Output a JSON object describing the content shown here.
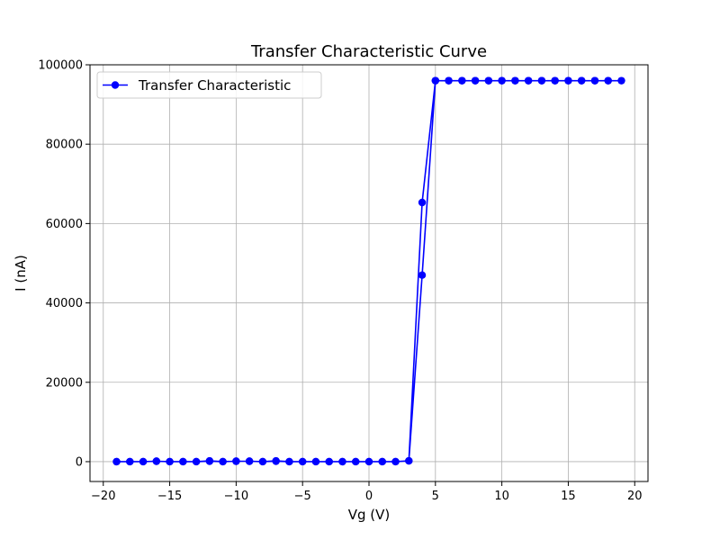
{
  "chart_data": {
    "type": "line",
    "title": "Transfer Characteristic Curve",
    "xlabel": "Vg (V)",
    "ylabel": "I (nA)",
    "xlim": [
      -21,
      21
    ],
    "ylim": [
      -5000,
      100000
    ],
    "xticks": [
      -20,
      -15,
      -10,
      -5,
      0,
      5,
      10,
      15,
      20
    ],
    "xtick_labels": [
      "−20",
      "−15",
      "−10",
      "−5",
      "0",
      "5",
      "10",
      "15",
      "20"
    ],
    "yticks": [
      0,
      20000,
      40000,
      60000,
      80000,
      100000
    ],
    "ytick_labels": [
      "0",
      "20000",
      "40000",
      "60000",
      "80000",
      "100000"
    ],
    "grid": true,
    "legend_position": "top-left",
    "series": [
      {
        "name": "Transfer Characteristic",
        "color": "#0000ff",
        "marker": "circle",
        "x": [
          -19,
          -18,
          -17,
          -16,
          -15,
          -14,
          -13,
          -12,
          -11,
          -10,
          -9,
          -8,
          -7,
          -6,
          -5,
          -4,
          -3,
          -2,
          -1,
          0,
          1,
          2,
          3,
          4,
          5,
          6,
          7,
          8,
          9,
          10,
          11,
          12,
          13,
          14,
          15,
          16,
          17,
          18,
          19,
          18,
          17,
          16,
          15,
          14,
          13,
          12,
          11,
          10,
          9,
          8,
          7,
          6,
          5,
          4,
          3,
          2,
          1,
          0,
          -1,
          -2,
          -3,
          -4,
          -5,
          -6,
          -7,
          -8,
          -9,
          -10,
          -11,
          -12,
          -13,
          -14,
          -15,
          -16,
          -17,
          -18,
          -19
        ],
        "y": [
          0,
          0,
          0,
          100,
          0,
          0,
          0,
          200,
          0,
          100,
          100,
          0,
          200,
          0,
          0,
          0,
          0,
          0,
          0,
          0,
          0,
          0,
          200,
          47000,
          96000,
          96000,
          96000,
          96000,
          96000,
          96000,
          96000,
          96000,
          96000,
          96000,
          96000,
          96000,
          96000,
          96000,
          96000,
          96000,
          96000,
          96000,
          96000,
          96000,
          96000,
          96000,
          96000,
          96000,
          96000,
          96000,
          96000,
          96000,
          96000,
          65300,
          200,
          0,
          0,
          0,
          0,
          0,
          0,
          0,
          0,
          0,
          100,
          0,
          100,
          100,
          0,
          100,
          0,
          0,
          0,
          100,
          0,
          0,
          0
        ]
      }
    ]
  }
}
